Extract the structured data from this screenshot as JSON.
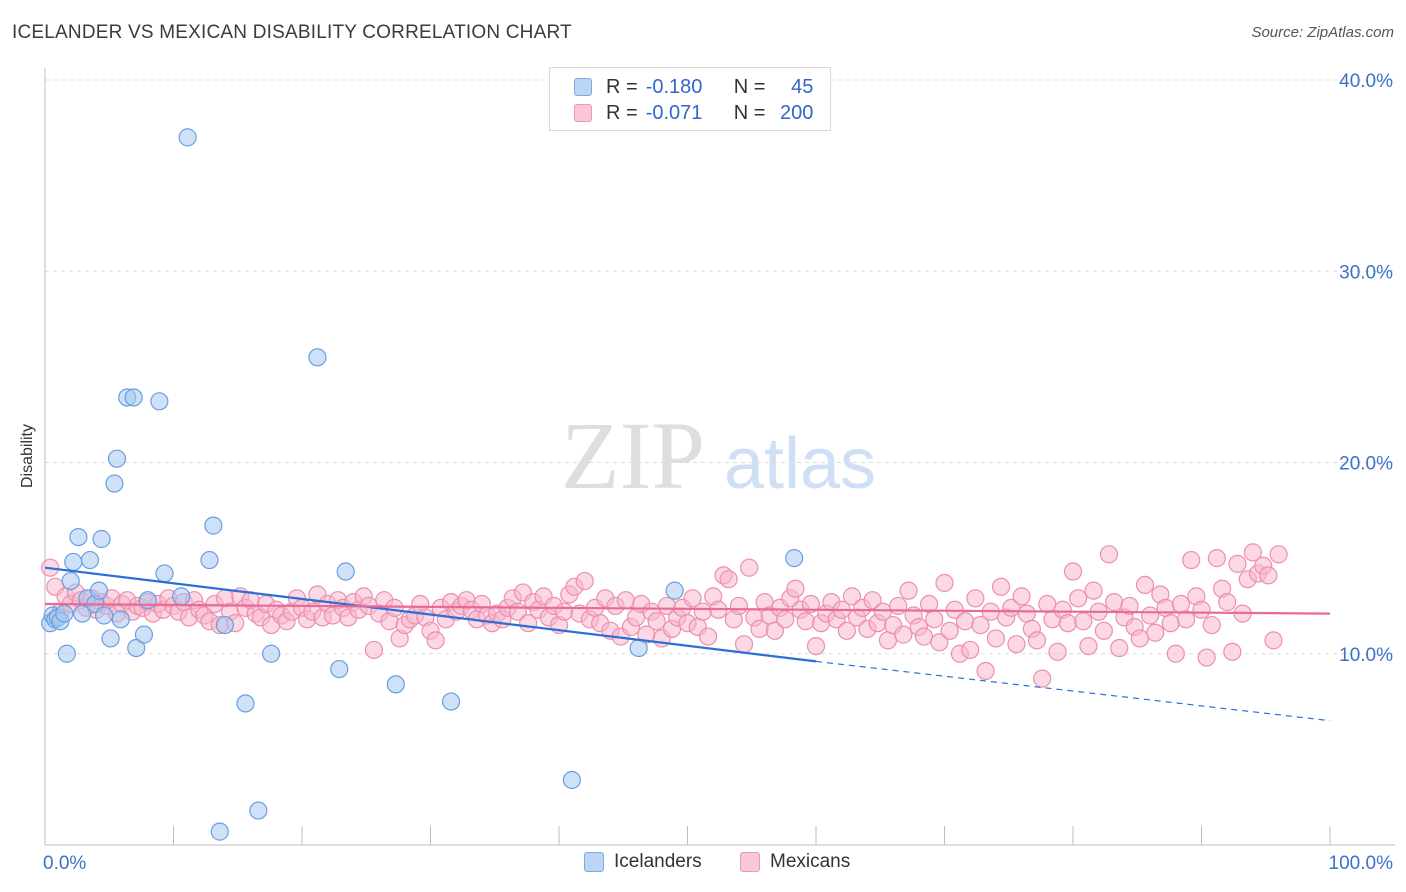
{
  "header": {
    "title": "ICELANDER VS MEXICAN DISABILITY CORRELATION CHART",
    "source": "Source: ZipAtlas.com"
  },
  "watermark": {
    "zip": "ZIP",
    "atlas": "atlas"
  },
  "legend": {
    "rows": [
      {
        "r_label": "R =",
        "r_value": "-0.180",
        "n_label": "N =",
        "n_value": "45",
        "color": "#a8c8f0"
      },
      {
        "r_label": "R =",
        "r_value": "-0.071",
        "n_label": "N =",
        "n_value": "200",
        "color": "#f7b8cc"
      }
    ]
  },
  "chart_data": {
    "type": "scatter",
    "title": "ICELANDER VS MEXICAN DISABILITY CORRELATION CHART",
    "xlabel": "",
    "ylabel": "Disability",
    "xlim": [
      0,
      100
    ],
    "ylim": [
      0,
      40
    ],
    "x_tick_labels": [
      "0.0%",
      "100.0%"
    ],
    "y_ticks": [
      10,
      20,
      30,
      40
    ],
    "y_tick_labels": [
      "10.0%",
      "20.0%",
      "30.0%",
      "40.0%"
    ],
    "grid": "horizontal dashed",
    "legend_position": "top-center",
    "colors": {
      "icelanders_fill": "#a8c8f0",
      "icelanders_stroke": "#6a9ee0",
      "icelanders_line": "#2a6fd6",
      "mexicans_fill": "#f7b8cc",
      "mexicans_stroke": "#ec8fae",
      "mexicans_line": "#e86a98",
      "tick_label": "#3a72c8"
    },
    "series": [
      {
        "name": "Icelanders",
        "trend": {
          "x": [
            0,
            60
          ],
          "y": [
            14.5,
            9.6
          ],
          "dashed_extension_to_x": 100,
          "dashed_end_y": 6.5
        },
        "points": [
          [
            0.4,
            11.6
          ],
          [
            0.6,
            12.0
          ],
          [
            0.8,
            11.8
          ],
          [
            1.0,
            11.9
          ],
          [
            1.2,
            11.7
          ],
          [
            1.5,
            12.1
          ],
          [
            1.7,
            10.0
          ],
          [
            2.0,
            13.8
          ],
          [
            2.2,
            14.8
          ],
          [
            2.6,
            16.1
          ],
          [
            2.9,
            12.1
          ],
          [
            3.3,
            12.9
          ],
          [
            3.5,
            14.9
          ],
          [
            3.9,
            12.6
          ],
          [
            4.2,
            13.3
          ],
          [
            4.4,
            16.0
          ],
          [
            4.6,
            12.0
          ],
          [
            5.1,
            10.8
          ],
          [
            5.6,
            20.2
          ],
          [
            5.9,
            11.8
          ],
          [
            5.4,
            18.9
          ],
          [
            6.4,
            23.4
          ],
          [
            6.9,
            23.4
          ],
          [
            7.1,
            10.3
          ],
          [
            7.7,
            11.0
          ],
          [
            8.0,
            12.8
          ],
          [
            8.9,
            23.2
          ],
          [
            9.3,
            14.2
          ],
          [
            10.6,
            13.0
          ],
          [
            11.1,
            37.0
          ],
          [
            12.8,
            14.9
          ],
          [
            13.1,
            16.7
          ],
          [
            13.6,
            0.7
          ],
          [
            14.0,
            11.5
          ],
          [
            15.6,
            7.4
          ],
          [
            16.6,
            1.8
          ],
          [
            17.6,
            10.0
          ],
          [
            21.2,
            25.5
          ],
          [
            22.9,
            9.2
          ],
          [
            23.4,
            14.3
          ],
          [
            27.3,
            8.4
          ],
          [
            31.6,
            7.5
          ],
          [
            41.0,
            3.4
          ],
          [
            46.2,
            10.3
          ],
          [
            49.0,
            13.3
          ],
          [
            58.3,
            15.0
          ]
        ]
      },
      {
        "name": "Mexicans",
        "trend": {
          "x": [
            0,
            100
          ],
          "y": [
            12.6,
            12.1
          ]
        },
        "points": [
          [
            0.4,
            14.5
          ],
          [
            0.8,
            13.5
          ],
          [
            1.2,
            12.2
          ],
          [
            1.6,
            13.0
          ],
          [
            2.0,
            12.6
          ],
          [
            2.4,
            13.2
          ],
          [
            2.8,
            12.8
          ],
          [
            3.2,
            12.4
          ],
          [
            3.6,
            12.9
          ],
          [
            4.0,
            12.3
          ],
          [
            4.4,
            12.7
          ],
          [
            4.8,
            12.5
          ],
          [
            5.2,
            12.9
          ],
          [
            5.6,
            12.1
          ],
          [
            6.0,
            12.6
          ],
          [
            6.4,
            12.8
          ],
          [
            6.8,
            12.2
          ],
          [
            7.2,
            12.5
          ],
          [
            7.6,
            12.4
          ],
          [
            8.0,
            12.7
          ],
          [
            8.4,
            12.1
          ],
          [
            8.8,
            12.6
          ],
          [
            9.2,
            12.3
          ],
          [
            9.6,
            12.9
          ],
          [
            10.0,
            12.5
          ],
          [
            10.4,
            12.2
          ],
          [
            10.8,
            12.7
          ],
          [
            11.2,
            11.9
          ],
          [
            11.6,
            12.8
          ],
          [
            12.0,
            12.3
          ],
          [
            12.4,
            12.0
          ],
          [
            12.8,
            11.7
          ],
          [
            13.2,
            12.6
          ],
          [
            13.6,
            11.5
          ],
          [
            14.0,
            12.9
          ],
          [
            14.4,
            12.2
          ],
          [
            14.8,
            11.6
          ],
          [
            15.2,
            13.0
          ],
          [
            15.6,
            12.4
          ],
          [
            16.0,
            12.8
          ],
          [
            16.4,
            12.1
          ],
          [
            16.8,
            11.9
          ],
          [
            17.2,
            12.6
          ],
          [
            17.6,
            11.5
          ],
          [
            18.0,
            12.3
          ],
          [
            18.4,
            12.0
          ],
          [
            18.8,
            11.7
          ],
          [
            19.2,
            12.2
          ],
          [
            19.6,
            12.9
          ],
          [
            20.0,
            12.4
          ],
          [
            20.4,
            11.8
          ],
          [
            20.8,
            12.2
          ],
          [
            21.2,
            13.1
          ],
          [
            21.6,
            11.9
          ],
          [
            22.0,
            12.6
          ],
          [
            22.4,
            12.0
          ],
          [
            22.8,
            12.8
          ],
          [
            23.2,
            12.4
          ],
          [
            23.6,
            11.9
          ],
          [
            24.0,
            12.7
          ],
          [
            24.4,
            12.3
          ],
          [
            24.8,
            13.0
          ],
          [
            25.2,
            12.5
          ],
          [
            25.6,
            10.2
          ],
          [
            26.0,
            12.1
          ],
          [
            26.4,
            12.8
          ],
          [
            26.8,
            11.7
          ],
          [
            27.2,
            12.4
          ],
          [
            27.6,
            10.8
          ],
          [
            28.0,
            11.5
          ],
          [
            28.4,
            11.8
          ],
          [
            28.8,
            12.0
          ],
          [
            29.2,
            12.6
          ],
          [
            29.6,
            11.9
          ],
          [
            30.0,
            11.2
          ],
          [
            30.4,
            10.7
          ],
          [
            30.8,
            12.4
          ],
          [
            31.2,
            11.8
          ],
          [
            31.6,
            12.7
          ],
          [
            32.0,
            12.2
          ],
          [
            32.4,
            12.5
          ],
          [
            32.8,
            12.8
          ],
          [
            33.2,
            12.3
          ],
          [
            33.6,
            11.8
          ],
          [
            34.0,
            12.6
          ],
          [
            34.4,
            12.0
          ],
          [
            34.8,
            11.6
          ],
          [
            35.2,
            12.1
          ],
          [
            35.6,
            11.8
          ],
          [
            36.0,
            12.4
          ],
          [
            36.4,
            12.9
          ],
          [
            36.8,
            12.2
          ],
          [
            37.2,
            13.2
          ],
          [
            37.6,
            11.6
          ],
          [
            38.0,
            12.7
          ],
          [
            38.4,
            12.3
          ],
          [
            38.8,
            13.0
          ],
          [
            39.2,
            11.9
          ],
          [
            39.6,
            12.5
          ],
          [
            40.0,
            11.5
          ],
          [
            40.4,
            12.2
          ],
          [
            40.8,
            13.1
          ],
          [
            41.2,
            13.5
          ],
          [
            41.6,
            12.1
          ],
          [
            42.0,
            13.8
          ],
          [
            42.4,
            11.8
          ],
          [
            42.8,
            12.4
          ],
          [
            43.2,
            11.6
          ],
          [
            43.6,
            12.9
          ],
          [
            44.0,
            11.2
          ],
          [
            44.4,
            12.5
          ],
          [
            44.8,
            10.9
          ],
          [
            45.2,
            12.8
          ],
          [
            45.6,
            11.4
          ],
          [
            46.0,
            11.9
          ],
          [
            46.4,
            12.6
          ],
          [
            46.8,
            11.0
          ],
          [
            47.2,
            12.2
          ],
          [
            47.6,
            11.7
          ],
          [
            48.0,
            10.8
          ],
          [
            48.4,
            12.5
          ],
          [
            48.8,
            11.3
          ],
          [
            49.2,
            11.9
          ],
          [
            49.6,
            12.4
          ],
          [
            50.0,
            11.6
          ],
          [
            50.4,
            12.9
          ],
          [
            50.8,
            11.4
          ],
          [
            51.2,
            12.2
          ],
          [
            51.6,
            10.9
          ],
          [
            52.0,
            13.0
          ],
          [
            52.4,
            12.3
          ],
          [
            52.8,
            14.1
          ],
          [
            53.2,
            13.9
          ],
          [
            53.6,
            11.8
          ],
          [
            54.0,
            12.5
          ],
          [
            54.4,
            10.5
          ],
          [
            54.8,
            14.5
          ],
          [
            55.2,
            11.9
          ],
          [
            55.6,
            11.3
          ],
          [
            56.0,
            12.7
          ],
          [
            56.4,
            12.0
          ],
          [
            56.8,
            11.2
          ],
          [
            57.2,
            12.4
          ],
          [
            57.6,
            11.8
          ],
          [
            58.0,
            12.9
          ],
          [
            58.4,
            13.4
          ],
          [
            58.8,
            12.3
          ],
          [
            59.2,
            11.7
          ],
          [
            59.6,
            12.6
          ],
          [
            60.0,
            10.4
          ],
          [
            60.4,
            11.6
          ],
          [
            60.8,
            12.1
          ],
          [
            61.2,
            12.7
          ],
          [
            61.6,
            11.8
          ],
          [
            62.0,
            12.3
          ],
          [
            62.4,
            11.2
          ],
          [
            62.8,
            13.0
          ],
          [
            63.2,
            11.9
          ],
          [
            63.6,
            12.4
          ],
          [
            64.0,
            11.3
          ],
          [
            64.4,
            12.8
          ],
          [
            64.8,
            11.6
          ],
          [
            65.2,
            12.2
          ],
          [
            65.6,
            10.7
          ],
          [
            66.0,
            11.5
          ],
          [
            66.4,
            12.5
          ],
          [
            66.8,
            11.0
          ],
          [
            67.2,
            13.3
          ],
          [
            67.6,
            12.0
          ],
          [
            68.0,
            11.4
          ],
          [
            68.4,
            10.9
          ],
          [
            68.8,
            12.6
          ],
          [
            69.2,
            11.8
          ],
          [
            69.6,
            10.6
          ],
          [
            70.0,
            13.7
          ],
          [
            70.4,
            11.2
          ],
          [
            70.8,
            12.3
          ],
          [
            71.2,
            10.0
          ],
          [
            71.6,
            11.7
          ],
          [
            72.0,
            10.2
          ],
          [
            72.4,
            12.9
          ],
          [
            72.8,
            11.5
          ],
          [
            73.2,
            9.1
          ],
          [
            73.6,
            12.2
          ],
          [
            74.0,
            10.8
          ],
          [
            74.4,
            13.5
          ],
          [
            74.8,
            11.9
          ],
          [
            75.2,
            12.4
          ],
          [
            75.6,
            10.5
          ],
          [
            76.0,
            13.0
          ],
          [
            76.4,
            12.1
          ],
          [
            76.8,
            11.3
          ],
          [
            77.2,
            10.7
          ],
          [
            77.6,
            8.7
          ],
          [
            78.0,
            12.6
          ],
          [
            78.4,
            11.8
          ],
          [
            78.8,
            10.1
          ],
          [
            79.2,
            12.3
          ],
          [
            79.6,
            11.6
          ],
          [
            80.0,
            14.3
          ],
          [
            80.4,
            12.9
          ],
          [
            80.8,
            11.7
          ],
          [
            81.2,
            10.4
          ],
          [
            81.6,
            13.3
          ],
          [
            82.0,
            12.2
          ],
          [
            82.4,
            11.2
          ],
          [
            82.8,
            15.2
          ],
          [
            83.2,
            12.7
          ],
          [
            83.6,
            10.3
          ],
          [
            84.0,
            11.9
          ],
          [
            84.4,
            12.5
          ],
          [
            84.8,
            11.4
          ],
          [
            85.2,
            10.8
          ],
          [
            85.6,
            13.6
          ],
          [
            86.0,
            12.0
          ],
          [
            86.4,
            11.1
          ],
          [
            86.8,
            13.1
          ],
          [
            87.2,
            12.4
          ],
          [
            87.6,
            11.6
          ],
          [
            88.0,
            10.0
          ],
          [
            88.4,
            12.6
          ],
          [
            88.8,
            11.8
          ],
          [
            89.2,
            14.9
          ],
          [
            89.6,
            13.0
          ],
          [
            90.0,
            12.3
          ],
          [
            90.4,
            9.8
          ],
          [
            90.8,
            11.5
          ],
          [
            91.2,
            15.0
          ],
          [
            91.6,
            13.4
          ],
          [
            92.0,
            12.7
          ],
          [
            92.4,
            10.1
          ],
          [
            92.8,
            14.7
          ],
          [
            93.2,
            12.1
          ],
          [
            93.6,
            13.9
          ],
          [
            94.0,
            15.3
          ],
          [
            94.4,
            14.2
          ],
          [
            94.8,
            14.6
          ],
          [
            95.2,
            14.1
          ],
          [
            95.6,
            10.7
          ],
          [
            96.0,
            15.2
          ]
        ]
      }
    ]
  }
}
